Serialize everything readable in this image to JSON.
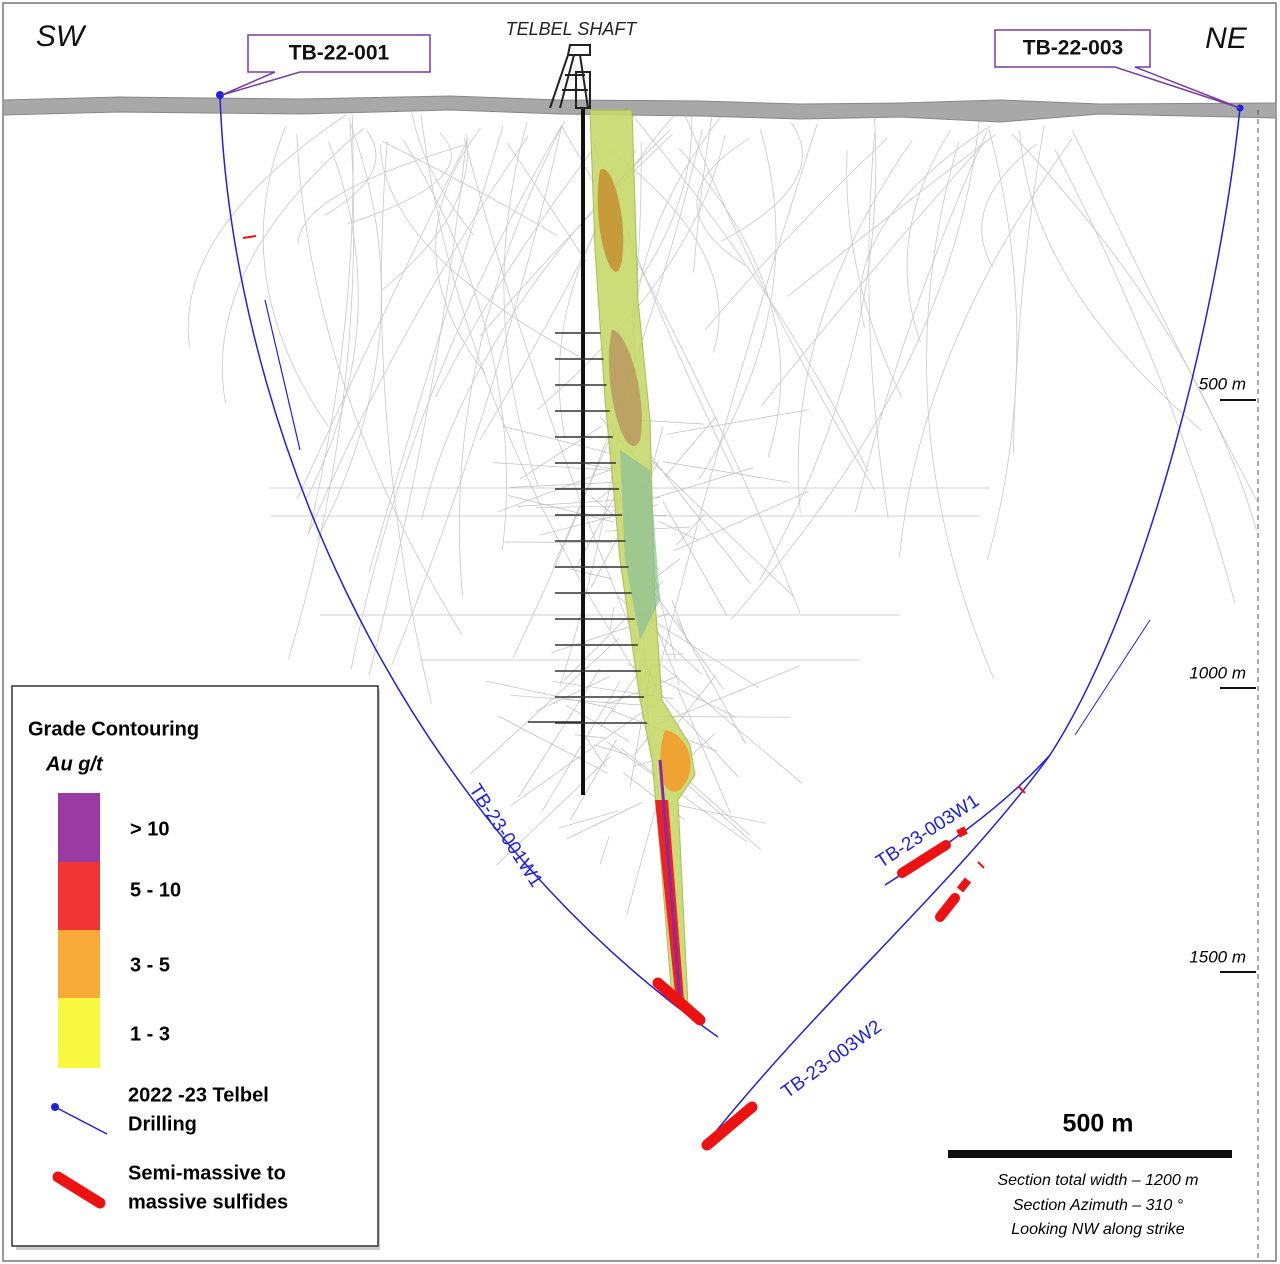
{
  "section": {
    "corner_left": "SW",
    "corner_right": "NE",
    "shaft_label": "TELBEL SHAFT",
    "collars": [
      "TB-22-001",
      "TB-22-003"
    ],
    "holes": [
      "TB-23-001W1",
      "TB-23-003W1",
      "TB-23-003W2"
    ],
    "depths": [
      "500 m",
      "1000 m",
      "1500 m"
    ]
  },
  "legend": {
    "title": "Grade Contouring",
    "unit": "Au g/t",
    "grades": [
      "> 10",
      "5 - 10",
      "3 - 5",
      "1 - 3"
    ],
    "drilling": [
      "2022 -23 Telbel",
      "Drilling"
    ],
    "sulfides": [
      "Semi-massive to",
      "massive sulfides"
    ]
  },
  "scale": {
    "label": "500 m",
    "notes": [
      "Section total width – 1200 m",
      "Section Azimuth – 310 °",
      "Looking NW along strike"
    ]
  }
}
